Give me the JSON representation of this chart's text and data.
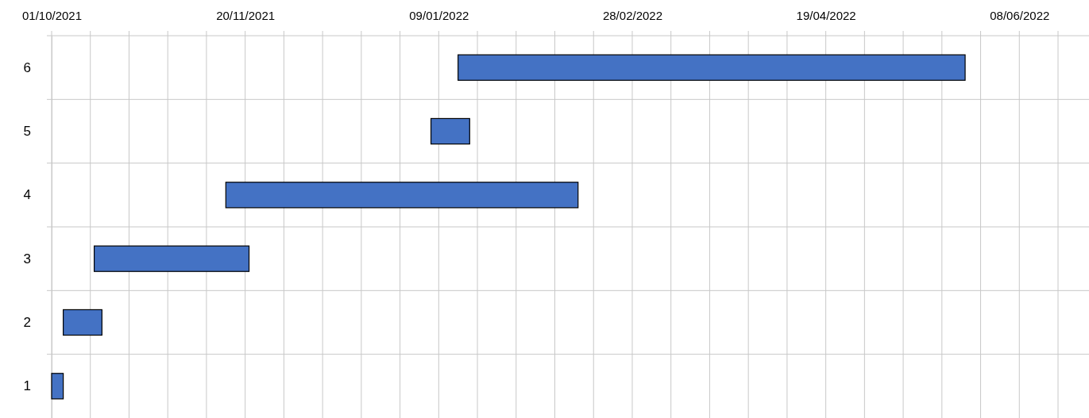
{
  "chart_data": {
    "type": "bar",
    "orientation": "horizontal",
    "categories": [
      "6",
      "5",
      "4",
      "3",
      "2",
      "1"
    ],
    "base": [
      19006,
      18999,
      18946,
      18912,
      18904,
      18901
    ],
    "values": [
      131,
      10,
      91,
      40,
      10,
      3
    ],
    "color": "#4472c4",
    "xlim": [
      "2021-10-01",
      "2022-06-26"
    ],
    "xticks": [
      {
        "value": "2021-10-01",
        "label": "01/10/2021"
      },
      {
        "value": "2021-10-11",
        "label": null
      },
      {
        "value": "2021-10-21",
        "label": null
      },
      {
        "value": "2021-10-31",
        "label": null
      },
      {
        "value": "2021-11-10",
        "label": null
      },
      {
        "value": "2021-11-20",
        "label": "20/11/2021"
      },
      {
        "value": "2021-11-30",
        "label": null
      },
      {
        "value": "2021-12-10",
        "label": null
      },
      {
        "value": "2021-12-20",
        "label": null
      },
      {
        "value": "2021-12-30",
        "label": null
      },
      {
        "value": "2022-01-09",
        "label": "09/01/2022"
      },
      {
        "value": "2022-01-19",
        "label": null
      },
      {
        "value": "2022-01-29",
        "label": null
      },
      {
        "value": "2022-02-08",
        "label": null
      },
      {
        "value": "2022-02-18",
        "label": null
      },
      {
        "value": "2022-02-28",
        "label": "28/02/2022"
      },
      {
        "value": "2022-03-10",
        "label": null
      },
      {
        "value": "2022-03-20",
        "label": null
      },
      {
        "value": "2022-03-30",
        "label": null
      },
      {
        "value": "2022-04-09",
        "label": null
      },
      {
        "value": "2022-04-19",
        "label": "19/04/2022"
      },
      {
        "value": "2022-04-29",
        "label": null
      },
      {
        "value": "2022-05-09",
        "label": null
      },
      {
        "value": "2022-05-19",
        "label": null
      },
      {
        "value": "2022-05-29",
        "label": null
      },
      {
        "value": "2022-06-08",
        "label": "08/06/2022"
      },
      {
        "value": "2022-06-18",
        "label": null
      }
    ],
    "grid": true
  }
}
